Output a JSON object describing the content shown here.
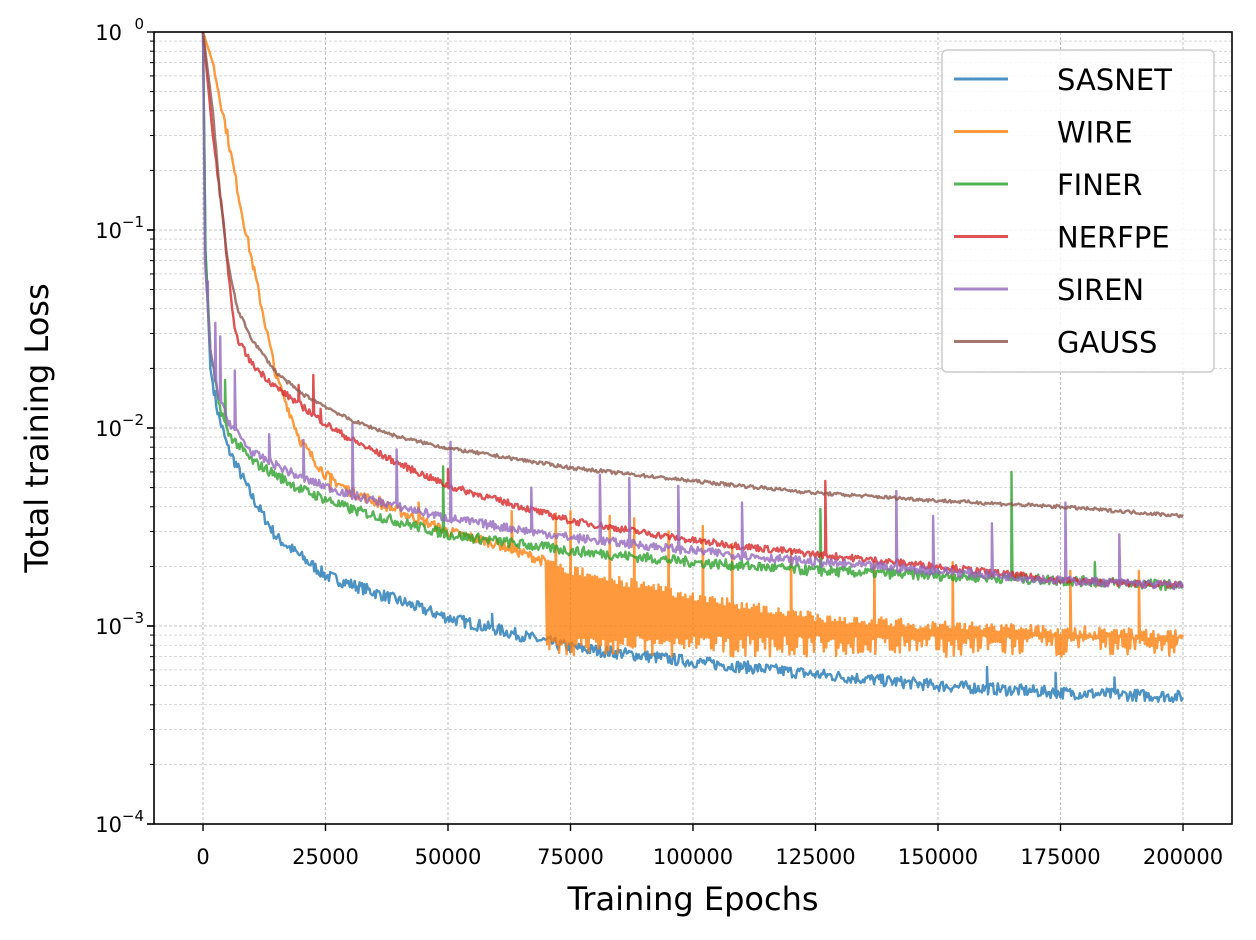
{
  "chart_data": {
    "type": "line",
    "xlabel": "Training Epochs",
    "ylabel": "Total training Loss",
    "xlim": [
      -10000,
      210000
    ],
    "ylim": [
      0.0001,
      1
    ],
    "yscale": "log",
    "grid": true,
    "legend_position": "top-right",
    "x_ticks": [
      0,
      25000,
      50000,
      75000,
      100000,
      125000,
      150000,
      175000,
      200000
    ],
    "x_tick_labels": [
      "0",
      "25000",
      "50000",
      "75000",
      "100000",
      "125000",
      "150000",
      "175000",
      "200000"
    ],
    "y_ticks": [
      {
        "value": 0.0001,
        "base": "10",
        "exp": "−4"
      },
      {
        "value": 0.001,
        "base": "10",
        "exp": "−3"
      },
      {
        "value": 0.01,
        "base": "10",
        "exp": "−2"
      },
      {
        "value": 0.1,
        "base": "10",
        "exp": "−1"
      },
      {
        "value": 1,
        "base": "10",
        "exp": "0"
      }
    ],
    "series": [
      {
        "name": "SASNET",
        "color": "#1f77b4",
        "noise": 0.07,
        "points": [
          [
            0,
            1.0
          ],
          [
            500,
            0.08
          ],
          [
            1500,
            0.02
          ],
          [
            3000,
            0.012
          ],
          [
            5000,
            0.008
          ],
          [
            10000,
            0.0045
          ],
          [
            15000,
            0.0028
          ],
          [
            25000,
            0.0018
          ],
          [
            50000,
            0.0011
          ],
          [
            75000,
            0.00078
          ],
          [
            100000,
            0.00066
          ],
          [
            125000,
            0.00057
          ],
          [
            150000,
            0.0005
          ],
          [
            175000,
            0.00046
          ],
          [
            200000,
            0.00044
          ]
        ],
        "spikes": [
          [
            59000,
            0.00115
          ],
          [
            160000,
            0.00062
          ],
          [
            174000,
            0.00058
          ],
          [
            186000,
            0.00055
          ]
        ]
      },
      {
        "name": "WIRE",
        "color": "#ff7f0e",
        "noise": 0.06,
        "points": [
          [
            0,
            1.0
          ],
          [
            2000,
            0.7
          ],
          [
            5000,
            0.3
          ],
          [
            8000,
            0.12
          ],
          [
            10000,
            0.07
          ],
          [
            15000,
            0.018
          ],
          [
            20000,
            0.0085
          ],
          [
            25000,
            0.0058
          ],
          [
            30000,
            0.0048
          ],
          [
            40000,
            0.0038
          ],
          [
            50000,
            0.003
          ],
          [
            60000,
            0.0026
          ],
          [
            75000,
            0.0019
          ],
          [
            100000,
            0.0014
          ],
          [
            125000,
            0.0011
          ],
          [
            150000,
            0.001
          ],
          [
            175000,
            0.00095
          ],
          [
            200000,
            0.0009
          ]
        ],
        "band": [
          70000,
          200000,
          0.0008
        ],
        "spikes": [
          [
            26000,
            0.0049
          ],
          [
            36000,
            0.0045
          ],
          [
            44000,
            0.0042
          ],
          [
            63000,
            0.0038
          ],
          [
            72000,
            0.0037
          ],
          [
            75000,
            0.0038
          ],
          [
            83000,
            0.0036
          ],
          [
            88000,
            0.0035
          ],
          [
            95000,
            0.003
          ],
          [
            102000,
            0.0032
          ],
          [
            108000,
            0.0026
          ],
          [
            120000,
            0.0024
          ],
          [
            137000,
            0.0021
          ],
          [
            153000,
            0.0021
          ],
          [
            177000,
            0.0019
          ],
          [
            191000,
            0.0019
          ]
        ]
      },
      {
        "name": "FINER",
        "color": "#2ca02c",
        "noise": 0.06,
        "points": [
          [
            0,
            1.0
          ],
          [
            500,
            0.08
          ],
          [
            1500,
            0.025
          ],
          [
            3000,
            0.014
          ],
          [
            5000,
            0.0095
          ],
          [
            10000,
            0.0068
          ],
          [
            20000,
            0.0049
          ],
          [
            30000,
            0.0039
          ],
          [
            50000,
            0.0029
          ],
          [
            75000,
            0.0024
          ],
          [
            100000,
            0.0021
          ],
          [
            125000,
            0.0019
          ],
          [
            150000,
            0.0018
          ],
          [
            175000,
            0.0017
          ],
          [
            200000,
            0.0016
          ]
        ],
        "spikes": [
          [
            4500,
            0.0175
          ],
          [
            49000,
            0.0064
          ],
          [
            126000,
            0.0039
          ],
          [
            165000,
            0.006
          ],
          [
            182000,
            0.0021
          ]
        ]
      },
      {
        "name": "NERFPE",
        "color": "#d62728",
        "noise": 0.04,
        "points": [
          [
            0,
            1.0
          ],
          [
            2000,
            0.3
          ],
          [
            4000,
            0.12
          ],
          [
            5500,
            0.05
          ],
          [
            6500,
            0.03
          ],
          [
            10000,
            0.021
          ],
          [
            15000,
            0.016
          ],
          [
            20000,
            0.013
          ],
          [
            25000,
            0.0105
          ],
          [
            30000,
            0.0088
          ],
          [
            40000,
            0.0066
          ],
          [
            50000,
            0.0051
          ],
          [
            75000,
            0.0034
          ],
          [
            100000,
            0.0027
          ],
          [
            125000,
            0.0023
          ],
          [
            150000,
            0.002
          ],
          [
            175000,
            0.0017
          ],
          [
            200000,
            0.0016
          ]
        ],
        "spikes": [
          [
            19500,
            0.0165
          ],
          [
            22500,
            0.0185
          ],
          [
            24000,
            0.0125
          ],
          [
            50000,
            0.0062
          ],
          [
            127000,
            0.0054
          ]
        ]
      },
      {
        "name": "SIREN",
        "color": "#9467bd",
        "noise": 0.05,
        "points": [
          [
            0,
            1.0
          ],
          [
            400,
            0.07
          ],
          [
            1500,
            0.025
          ],
          [
            3000,
            0.015
          ],
          [
            5000,
            0.011
          ],
          [
            10000,
            0.0075
          ],
          [
            20000,
            0.0056
          ],
          [
            30000,
            0.0046
          ],
          [
            50000,
            0.0035
          ],
          [
            75000,
            0.0028
          ],
          [
            100000,
            0.0024
          ],
          [
            125000,
            0.0021
          ],
          [
            150000,
            0.0019
          ],
          [
            175000,
            0.0017
          ],
          [
            200000,
            0.0016
          ]
        ],
        "spikes": [
          [
            1000,
            0.055
          ],
          [
            2500,
            0.034
          ],
          [
            3500,
            0.029
          ],
          [
            6500,
            0.0195
          ],
          [
            13500,
            0.0093
          ],
          [
            20500,
            0.0087
          ],
          [
            30500,
            0.0105
          ],
          [
            39500,
            0.0078
          ],
          [
            50500,
            0.0085
          ],
          [
            67000,
            0.005
          ],
          [
            81000,
            0.0058
          ],
          [
            87000,
            0.0056
          ],
          [
            97000,
            0.0051
          ],
          [
            110000,
            0.0042
          ],
          [
            141500,
            0.0048
          ],
          [
            149000,
            0.0036
          ],
          [
            161000,
            0.0033
          ],
          [
            176000,
            0.0042
          ],
          [
            187000,
            0.0029
          ]
        ]
      },
      {
        "name": "GAUSS",
        "color": "#8c564b",
        "noise": 0.02,
        "points": [
          [
            0,
            1.0
          ],
          [
            2000,
            0.4
          ],
          [
            3500,
            0.15
          ],
          [
            5000,
            0.07
          ],
          [
            7000,
            0.04
          ],
          [
            10000,
            0.028
          ],
          [
            15000,
            0.019
          ],
          [
            20000,
            0.015
          ],
          [
            30000,
            0.011
          ],
          [
            40000,
            0.009
          ],
          [
            50000,
            0.0079
          ],
          [
            75000,
            0.0063
          ],
          [
            100000,
            0.0054
          ],
          [
            125000,
            0.0047
          ],
          [
            150000,
            0.0043
          ],
          [
            175000,
            0.004
          ],
          [
            200000,
            0.0036
          ]
        ],
        "spikes": []
      }
    ]
  }
}
